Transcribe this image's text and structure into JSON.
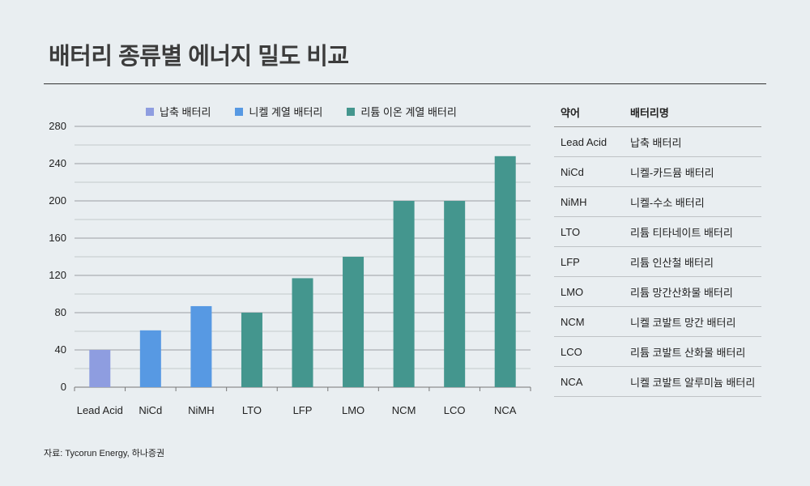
{
  "title": "배터리 종류별 에너지 밀도 비교",
  "source": "자료: Tycorun Energy, 하나증권",
  "chart_data": {
    "type": "bar",
    "title": "배터리 종류별 에너지 밀도 비교",
    "categories": [
      "Lead Acid",
      "NiCd",
      "NiMH",
      "LTO",
      "LFP",
      "LMO",
      "NCM",
      "LCO",
      "NCA"
    ],
    "values": [
      40,
      61,
      87,
      80,
      117,
      140,
      200,
      200,
      248
    ],
    "groups": [
      0,
      1,
      1,
      2,
      2,
      2,
      2,
      2,
      2
    ],
    "legend": [
      {
        "name": "납축 배터리",
        "color": "#8e9de0"
      },
      {
        "name": "니켈 계열 배터리",
        "color": "#5799e3"
      },
      {
        "name": "리튬 이온 계열 배터리",
        "color": "#44968e"
      }
    ],
    "ylim": [
      0,
      280
    ],
    "yticks": [
      "0",
      "40",
      "80",
      "120",
      "160",
      "200",
      "240",
      "280"
    ],
    "xlabel": "",
    "ylabel": "",
    "grid": true,
    "legend_position": "top"
  },
  "table": {
    "headers": [
      "약어",
      "배터리명"
    ],
    "rows": [
      [
        "Lead Acid",
        "납축 배터리"
      ],
      [
        "NiCd",
        "니켈-카드뮴 배터리"
      ],
      [
        "NiMH",
        "니켈-수소 배터리"
      ],
      [
        "LTO",
        "리튬 티타네이트 배터리"
      ],
      [
        "LFP",
        "리튬 인산철 배터리"
      ],
      [
        "LMO",
        "리튬 망간산화물 배터리"
      ],
      [
        "NCM",
        "니켈 코발트 망간 배터리"
      ],
      [
        "LCO",
        "리튬 코발트 산화물 배터리"
      ],
      [
        "NCA",
        "니켈 코발트 알루미늄 배터리"
      ]
    ]
  }
}
